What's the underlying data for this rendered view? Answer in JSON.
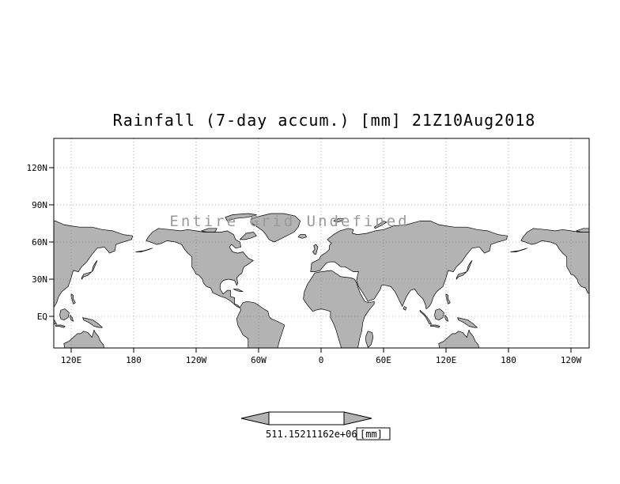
{
  "title": "Rainfall (7-day accum.) [mm] 21Z10Aug2018",
  "annotation": "Entire Grid Undefined",
  "axes": {
    "y_ticks": [
      "120N",
      "90N",
      "60N",
      "30N",
      "EQ"
    ],
    "x_ticks": [
      "120E",
      "180",
      "120W",
      "60W",
      "0",
      "60E",
      "120E",
      "180",
      "120W"
    ]
  },
  "colorbar": {
    "label": "511.15211162e+06",
    "units": "[mm]"
  },
  "colors": {
    "land": "#b3b3b3",
    "coastline": "#000000",
    "grid": "#777777",
    "annotation": "#9a9a9a",
    "background": "#ffffff"
  },
  "chart_data": {
    "type": "map",
    "title": "Rainfall (7-day accum.) [mm] 21Z10Aug2018",
    "variable": "Rainfall (7-day accum.)",
    "units": "mm",
    "valid_time": "21Z10Aug2018",
    "status": "Entire Grid Undefined",
    "projection": "latlon",
    "x_axis": {
      "ticks": [
        "120E",
        "180",
        "120W",
        "60W",
        "0",
        "60E",
        "120E",
        "180",
        "120W"
      ],
      "grid": true
    },
    "y_axis": {
      "ticks": [
        "120N",
        "90N",
        "60N",
        "30N",
        "EQ"
      ],
      "grid": true
    },
    "colorbar": {
      "shape": "double-arrow",
      "visible_label": "511.15211162e+06",
      "units_label": "[mm]"
    },
    "data_points": []
  }
}
